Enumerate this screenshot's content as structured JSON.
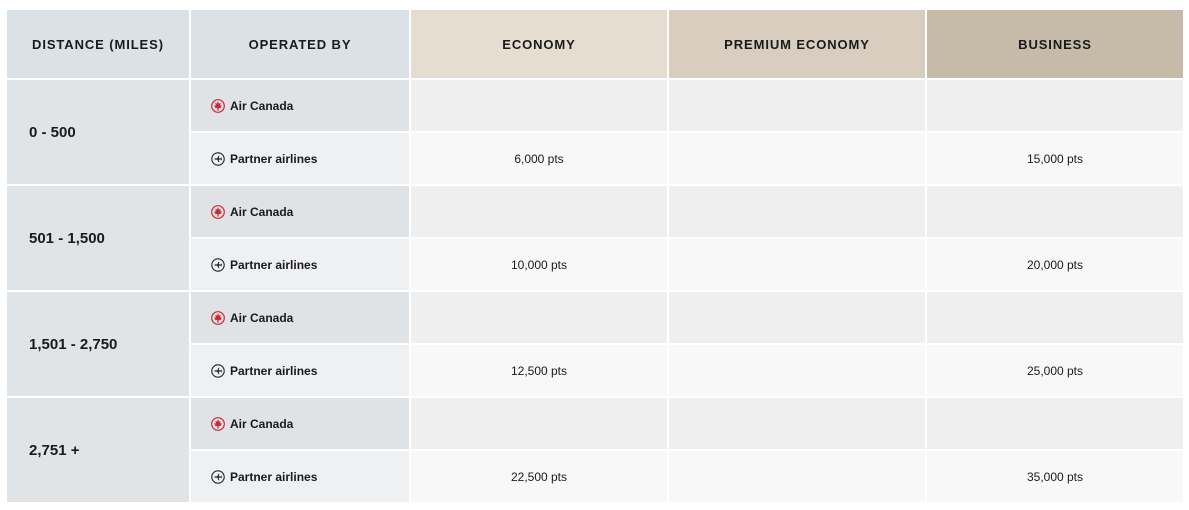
{
  "headers": {
    "distance": "DISTANCE (MILES)",
    "operated_by": "OPERATED BY",
    "economy": "ECONOMY",
    "premium_economy": "PREMIUM ECONOMY",
    "business": "BUSINESS"
  },
  "rows": [
    {
      "distance": "0 - 500",
      "air_canada": {
        "label": "Air Canada",
        "economy": "",
        "premium_economy": "",
        "business": ""
      },
      "partner": {
        "label": "Partner airlines",
        "economy": "6,000 pts",
        "premium_economy": "",
        "business": "15,000 pts"
      }
    },
    {
      "distance": "501 - 1,500",
      "air_canada": {
        "label": "Air Canada",
        "economy": "",
        "premium_economy": "",
        "business": ""
      },
      "partner": {
        "label": "Partner airlines",
        "economy": "10,000 pts",
        "premium_economy": "",
        "business": "20,000 pts"
      }
    },
    {
      "distance": "1,501 - 2,750",
      "air_canada": {
        "label": "Air Canada",
        "economy": "",
        "premium_economy": "",
        "business": ""
      },
      "partner": {
        "label": "Partner airlines",
        "economy": "12,500 pts",
        "premium_economy": "",
        "business": "25,000 pts"
      }
    },
    {
      "distance": "2,751 +",
      "air_canada": {
        "label": "Air Canada",
        "economy": "",
        "premium_economy": "",
        "business": ""
      },
      "partner": {
        "label": "Partner airlines",
        "economy": "22,500 pts",
        "premium_economy": "",
        "business": "35,000 pts"
      }
    }
  ],
  "icons": {
    "air_canada": "maple-leaf-icon",
    "partner": "plane-circle-icon"
  },
  "colors": {
    "air_canada_red": "#d22630"
  }
}
